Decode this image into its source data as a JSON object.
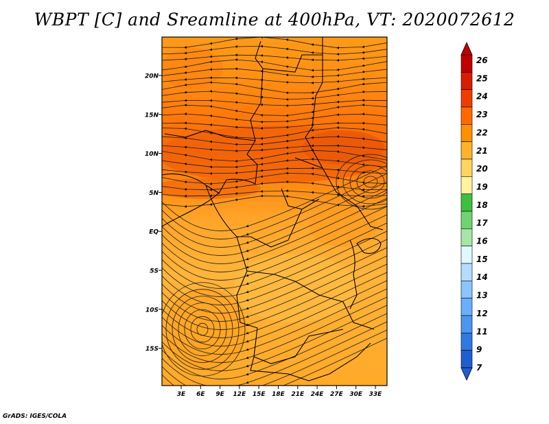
{
  "title": "WBPT [C] and Sreamline at 400hPa, VT: 2020072612",
  "credit": "GrADS: IGES/COLA",
  "map": {
    "lat_labels": [
      "20N",
      "15N",
      "10N",
      "5N",
      "EQ",
      "5S",
      "10S",
      "15S"
    ],
    "lon_labels": [
      "3E",
      "6E",
      "9E",
      "12E",
      "15E",
      "18E",
      "21E",
      "24E",
      "27E",
      "30E",
      "33E"
    ]
  },
  "colorbar": {
    "labels": [
      "26",
      "25",
      "24",
      "23",
      "22",
      "21",
      "20",
      "19",
      "18",
      "17",
      "16",
      "15",
      "14",
      "13",
      "12",
      "11",
      "9",
      "7"
    ],
    "colors": [
      "#c00000",
      "#d81e00",
      "#f03c00",
      "#ff6a00",
      "#ff9100",
      "#ffb32a",
      "#ffd561",
      "#fff2a0",
      "#3fbf3f",
      "#6fd46f",
      "#a6e6a6",
      "#e0f8ff",
      "#b4dcff",
      "#8cc4ff",
      "#6aaeff",
      "#4a96f0",
      "#2f7ae0",
      "#1f5ed0"
    ]
  }
}
